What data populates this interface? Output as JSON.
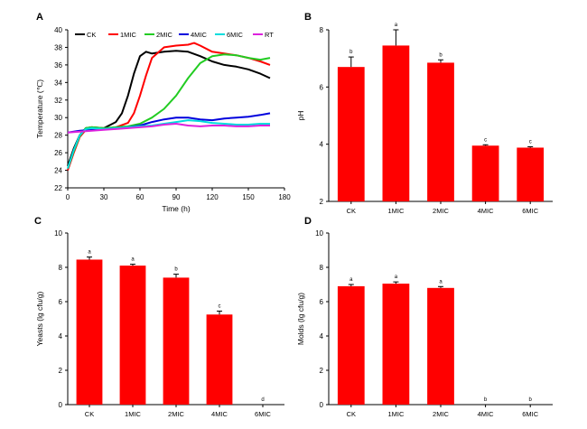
{
  "figure": {
    "colors": {
      "bar": "#ff0000",
      "axis": "#000000",
      "CK": "#000000",
      "1MIC": "#ff0000",
      "2MIC": "#22cc22",
      "4MIC": "#0000dd",
      "6MIC": "#00dddd",
      "RT": "#dd22dd"
    }
  },
  "chart_data": [
    {
      "id": "A",
      "panel_label": "A",
      "type": "line",
      "xlabel": "Time (h)",
      "ylabel": "Temperature (℃)",
      "xlim": [
        0,
        180
      ],
      "ylim": [
        22,
        40
      ],
      "xticks": [
        "0",
        "30",
        "60",
        "90",
        "120",
        "150",
        "180"
      ],
      "yticks": [
        "22",
        "24",
        "26",
        "28",
        "30",
        "32",
        "34",
        "36",
        "38",
        "40"
      ],
      "legend": {
        "placement": "top",
        "entries": [
          "CK",
          "1MIC",
          "2MIC",
          "4MIC",
          "6MIC",
          "RT"
        ]
      },
      "series": [
        {
          "name": "CK",
          "color": "#000000",
          "x": [
            0,
            5,
            10,
            15,
            20,
            30,
            40,
            45,
            50,
            55,
            60,
            65,
            70,
            80,
            90,
            100,
            110,
            120,
            130,
            140,
            150,
            160,
            168
          ],
          "y": [
            24.5,
            26.5,
            28.0,
            28.8,
            28.9,
            28.8,
            29.5,
            30.5,
            32.5,
            35.0,
            37.0,
            37.5,
            37.3,
            37.5,
            37.6,
            37.5,
            37.0,
            36.4,
            36.0,
            35.8,
            35.5,
            35.0,
            34.5
          ]
        },
        {
          "name": "1MIC",
          "color": "#ff0000",
          "x": [
            0,
            5,
            10,
            15,
            20,
            30,
            40,
            50,
            55,
            60,
            65,
            70,
            80,
            90,
            100,
            105,
            110,
            120,
            130,
            140,
            150,
            160,
            168
          ],
          "y": [
            24.0,
            26.0,
            27.8,
            28.6,
            28.9,
            28.7,
            28.9,
            29.4,
            30.5,
            32.5,
            34.8,
            36.8,
            38.0,
            38.2,
            38.3,
            38.5,
            38.2,
            37.5,
            37.3,
            37.1,
            36.8,
            36.4,
            36.0
          ]
        },
        {
          "name": "2MIC",
          "color": "#22cc22",
          "x": [
            0,
            5,
            10,
            15,
            20,
            30,
            40,
            50,
            60,
            70,
            80,
            90,
            95,
            100,
            110,
            120,
            130,
            140,
            150,
            160,
            168
          ],
          "y": [
            24.2,
            26.2,
            27.9,
            28.8,
            28.9,
            28.8,
            28.9,
            29.0,
            29.3,
            30.0,
            31.0,
            32.5,
            33.5,
            34.5,
            36.2,
            37.0,
            37.2,
            37.1,
            36.8,
            36.6,
            36.8
          ]
        },
        {
          "name": "4MIC",
          "color": "#0000dd",
          "x": [
            0,
            10,
            20,
            30,
            40,
            50,
            60,
            70,
            80,
            90,
            100,
            110,
            120,
            130,
            140,
            150,
            160,
            168
          ],
          "y": [
            28.3,
            28.5,
            28.6,
            28.7,
            28.8,
            28.9,
            29.1,
            29.5,
            29.8,
            30.0,
            30.0,
            29.8,
            29.7,
            29.9,
            30.0,
            30.1,
            30.3,
            30.5
          ]
        },
        {
          "name": "6MIC",
          "color": "#00dddd",
          "x": [
            0,
            5,
            10,
            15,
            20,
            30,
            40,
            50,
            60,
            70,
            80,
            90,
            100,
            110,
            120,
            130,
            140,
            150,
            160,
            168
          ],
          "y": [
            24.2,
            26.3,
            28.0,
            28.7,
            28.8,
            28.7,
            28.8,
            28.9,
            29.0,
            29.1,
            29.3,
            29.5,
            29.7,
            29.6,
            29.4,
            29.3,
            29.2,
            29.2,
            29.3,
            29.3
          ]
        },
        {
          "name": "RT",
          "color": "#dd22dd",
          "x": [
            0,
            10,
            20,
            30,
            40,
            50,
            60,
            70,
            80,
            90,
            100,
            110,
            120,
            130,
            140,
            150,
            160,
            168
          ],
          "y": [
            28.3,
            28.4,
            28.5,
            28.6,
            28.7,
            28.8,
            28.9,
            29.0,
            29.2,
            29.3,
            29.1,
            29.0,
            29.1,
            29.1,
            29.0,
            29.0,
            29.1,
            29.1
          ]
        }
      ]
    },
    {
      "id": "B",
      "panel_label": "B",
      "type": "bar",
      "xlabel": "",
      "ylabel": "pH",
      "ylim": [
        2,
        8
      ],
      "yticks": [
        "2",
        "4",
        "6",
        "8"
      ],
      "categories": [
        "CK",
        "1MIC",
        "2MIC",
        "4MIC",
        "6MIC"
      ],
      "values": [
        6.7,
        7.45,
        6.85,
        3.95,
        3.88
      ],
      "errors": [
        0.35,
        0.55,
        0.1,
        0.03,
        0.03
      ],
      "letters": [
        "b",
        "a",
        "b",
        "c",
        "c"
      ]
    },
    {
      "id": "C",
      "panel_label": "C",
      "type": "bar",
      "xlabel": "",
      "ylabel": "Yeasts (lg cfu/g)",
      "ylim": [
        0,
        10
      ],
      "yticks": [
        "0",
        "2",
        "4",
        "6",
        "8",
        "10"
      ],
      "categories": [
        "CK",
        "1MIC",
        "2MIC",
        "4MIC",
        "6MIC"
      ],
      "values": [
        8.45,
        8.1,
        7.4,
        5.25,
        0
      ],
      "errors": [
        0.15,
        0.08,
        0.2,
        0.2,
        0
      ],
      "letters": [
        "a",
        "a",
        "b",
        "c",
        "d"
      ]
    },
    {
      "id": "D",
      "panel_label": "D",
      "type": "bar",
      "xlabel": "",
      "ylabel": "Molds (lg cfu/g)",
      "ylim": [
        0,
        10
      ],
      "yticks": [
        "0",
        "2",
        "4",
        "6",
        "8",
        "10"
      ],
      "categories": [
        "CK",
        "1MIC",
        "2MIC",
        "4MIC",
        "6MIC"
      ],
      "values": [
        6.9,
        7.05,
        6.8,
        0,
        0
      ],
      "errors": [
        0.1,
        0.1,
        0.08,
        0,
        0
      ],
      "letters": [
        "a",
        "a",
        "a",
        "b",
        "b"
      ]
    }
  ]
}
